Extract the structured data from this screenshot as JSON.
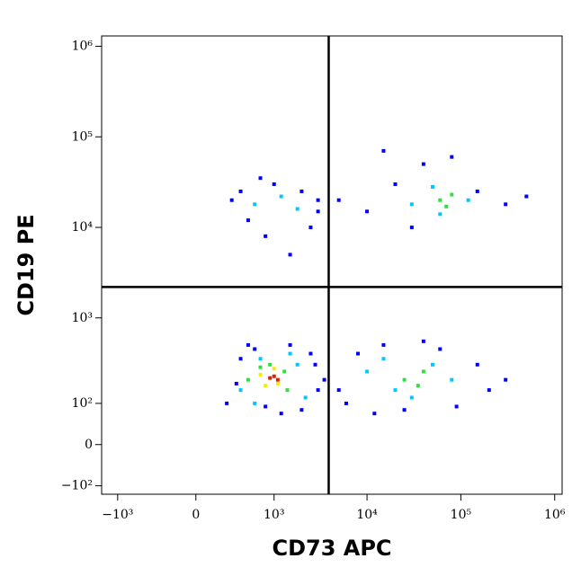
{
  "chart_data": {
    "type": "scatter",
    "xlabel": "CD73 APC",
    "ylabel": "CD19 PE",
    "xscale": "biexponential",
    "yscale": "biexponential",
    "xlim": [
      -1500,
      1200000
    ],
    "ylim": [
      -130,
      1300000
    ],
    "xticks": [
      {
        "value": -1000,
        "label": "−10³"
      },
      0,
      {
        "value": 1000,
        "label": "10³"
      },
      {
        "value": 10000,
        "label": "10⁴"
      },
      {
        "value": 100000,
        "label": "10⁵"
      },
      {
        "value": 1000000,
        "label": "10⁶"
      }
    ],
    "yticks": [
      {
        "value": -100,
        "label": "−10²"
      },
      0,
      {
        "value": 100,
        "label": "10²"
      },
      {
        "value": 1000,
        "label": "10³"
      },
      {
        "value": 10000,
        "label": "10⁴"
      },
      {
        "value": 100000,
        "label": "10⁵"
      },
      {
        "value": 1000000,
        "label": "10⁶"
      }
    ],
    "quadrant": {
      "x": 3900,
      "y": 2200
    },
    "series": [
      {
        "color": "#0000ff",
        "x": [
          250,
          400,
          600,
          1500,
          2500,
          3000,
          350,
          800,
          2000,
          500,
          1200,
          2800,
          5000,
          8000,
          15000,
          60000,
          150000,
          300000,
          6000,
          25000,
          90000,
          200000,
          12000,
          40000,
          300,
          500,
          1000,
          2000,
          3000,
          400,
          800,
          1500,
          2500,
          700,
          5000,
          10000,
          20000,
          40000,
          150000,
          300000,
          500000,
          30000,
          80000,
          15000,
          3500,
          3000
        ],
        "values": [
          100,
          350,
          450,
          500,
          400,
          150,
          180,
          90,
          80,
          500,
          70,
          300,
          150,
          400,
          500,
          450,
          300,
          200,
          100,
          80,
          90,
          150,
          70,
          550,
          20000,
          12000,
          30000,
          25000,
          15000,
          25000,
          8000,
          5000,
          10000,
          35000,
          20000,
          15000,
          30000,
          50000,
          25000,
          18000,
          22000,
          10000,
          60000,
          70000,
          200,
          20000
        ]
      },
      {
        "color": "#00c8ff",
        "x": [
          400,
          700,
          1800,
          2200,
          600,
          1500,
          10000,
          20000,
          50000,
          80000,
          30000,
          15000,
          600,
          1200,
          1800,
          30000,
          50000,
          120000,
          60000
        ],
        "values": [
          150,
          350,
          300,
          120,
          100,
          400,
          250,
          150,
          300,
          200,
          120,
          350,
          18000,
          22000,
          16000,
          18000,
          28000,
          20000,
          14000
        ]
      },
      {
        "color": "#30e040",
        "x": [
          500,
          900,
          1400,
          700,
          1300,
          25000,
          40000,
          35000,
          60000,
          80000,
          70000
        ],
        "values": [
          200,
          300,
          150,
          280,
          250,
          200,
          250,
          170,
          20000,
          23000,
          17000
        ]
      },
      {
        "color": "#f0f000",
        "x": [
          700,
          1100,
          1000,
          800
        ],
        "values": [
          230,
          180,
          270,
          170
        ]
      },
      {
        "color": "#e02000",
        "x": [
          900,
          1000,
          1100
        ],
        "values": [
          210,
          220,
          200
        ]
      }
    ]
  }
}
